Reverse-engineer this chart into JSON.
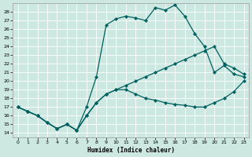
{
  "xlabel": "Humidex (Indice chaleur)",
  "bg_color": "#cce8e0",
  "grid_color": "#ffffff",
  "line_color": "#006060",
  "xlim": [
    -0.5,
    23.5
  ],
  "ylim": [
    13.5,
    29.0
  ],
  "xticks": [
    0,
    1,
    2,
    3,
    4,
    5,
    6,
    7,
    8,
    9,
    10,
    11,
    12,
    13,
    14,
    15,
    16,
    17,
    18,
    19,
    20,
    21,
    22,
    23
  ],
  "yticks": [
    14,
    15,
    16,
    17,
    18,
    19,
    20,
    21,
    22,
    23,
    24,
    25,
    26,
    27,
    28
  ],
  "curve_upper_x": [
    0,
    1,
    2,
    3,
    4,
    5,
    6,
    7,
    8,
    9,
    10,
    11,
    12,
    13,
    14,
    15,
    16,
    17,
    18,
    19,
    20,
    21,
    22,
    23
  ],
  "curve_upper_y": [
    17.0,
    16.5,
    16.0,
    15.2,
    14.5,
    15.0,
    14.3,
    17.0,
    20.5,
    26.5,
    27.2,
    27.5,
    27.3,
    27.0,
    28.5,
    28.2,
    28.8,
    27.5,
    25.5,
    24.0,
    21.0,
    21.8,
    20.8,
    20.5
  ],
  "curve_mid_x": [
    0,
    1,
    2,
    3,
    4,
    5,
    6,
    7,
    8,
    9,
    10,
    11,
    12,
    13,
    14,
    15,
    16,
    17,
    18,
    19,
    20,
    21,
    22,
    23
  ],
  "curve_mid_y": [
    17.0,
    16.5,
    16.0,
    15.2,
    14.5,
    15.0,
    14.3,
    16.0,
    17.5,
    18.5,
    19.0,
    19.5,
    20.0,
    20.5,
    21.0,
    21.5,
    22.0,
    22.5,
    23.0,
    23.5,
    24.0,
    22.0,
    21.5,
    20.8
  ],
  "curve_low_x": [
    0,
    1,
    2,
    3,
    4,
    5,
    6,
    7,
    8,
    9,
    10,
    11,
    12,
    13,
    14,
    15,
    16,
    17,
    18,
    19,
    20,
    21,
    22,
    23
  ],
  "curve_low_y": [
    17.0,
    16.5,
    16.0,
    15.2,
    14.5,
    15.0,
    14.3,
    16.0,
    17.5,
    18.5,
    19.0,
    19.0,
    18.5,
    18.0,
    17.8,
    17.5,
    17.3,
    17.2,
    17.0,
    17.0,
    17.5,
    18.0,
    18.8,
    20.0
  ]
}
